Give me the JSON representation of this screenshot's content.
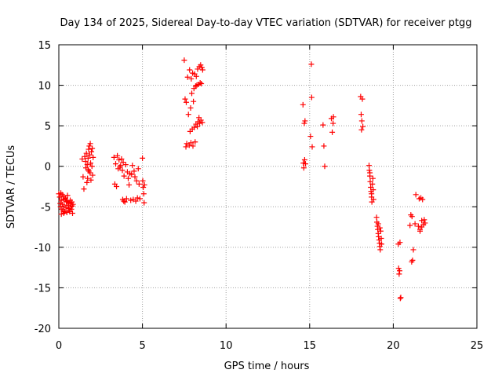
{
  "chart_data": {
    "type": "scatter",
    "title": "Day 134 of 2025, Sidereal Day-to-day VTEC variation (SDTVAR) for receiver ptgg",
    "xlabel": "GPS time / hours",
    "ylabel": "SDTVAR / TECUs",
    "xlim": [
      0,
      25
    ],
    "ylim": [
      -20,
      15
    ],
    "xticks": [
      0,
      5,
      10,
      15,
      20,
      25
    ],
    "xtick_labels": [
      "0",
      "5",
      "10",
      "15",
      "20",
      "25"
    ],
    "yticks": [
      -20,
      -15,
      -10,
      -5,
      0,
      5,
      10,
      15
    ],
    "ytick_labels": [
      "-20",
      "-15",
      "-10",
      "-5",
      "0",
      "5",
      "10",
      "15"
    ],
    "grid": true,
    "marker": "plus",
    "color": "#ff0000",
    "series": [
      {
        "name": "SDTVAR",
        "points": [
          [
            0.0,
            -3.4
          ],
          [
            0.05,
            -3.8
          ],
          [
            0.08,
            -4.6
          ],
          [
            0.1,
            -5.0
          ],
          [
            0.12,
            -3.3
          ],
          [
            0.15,
            -4.2
          ],
          [
            0.18,
            -5.3
          ],
          [
            0.2,
            -3.5
          ],
          [
            0.22,
            -4.7
          ],
          [
            0.25,
            -5.5
          ],
          [
            0.28,
            -3.7
          ],
          [
            0.3,
            -4.1
          ],
          [
            0.32,
            -4.9
          ],
          [
            0.35,
            -5.6
          ],
          [
            0.38,
            -4.0
          ],
          [
            0.4,
            -3.9
          ],
          [
            0.42,
            -5.1
          ],
          [
            0.45,
            -4.4
          ],
          [
            0.48,
            -5.7
          ],
          [
            0.5,
            -4.3
          ],
          [
            0.52,
            -3.6
          ],
          [
            0.55,
            -4.8
          ],
          [
            0.58,
            -5.2
          ],
          [
            0.6,
            -4.5
          ],
          [
            0.62,
            -5.4
          ],
          [
            0.65,
            -5.6
          ],
          [
            0.68,
            -4.2
          ],
          [
            0.7,
            -4.6
          ],
          [
            0.72,
            -5.0
          ],
          [
            0.75,
            -5.3
          ],
          [
            0.78,
            -4.4
          ],
          [
            0.8,
            -4.9
          ],
          [
            0.82,
            -5.8
          ],
          [
            0.85,
            -4.7
          ],
          [
            0.3,
            -5.8
          ],
          [
            0.15,
            -5.9
          ],
          [
            1.4,
            0.9
          ],
          [
            1.45,
            -1.3
          ],
          [
            1.5,
            -2.8
          ],
          [
            1.55,
            1.2
          ],
          [
            1.6,
            0.6
          ],
          [
            1.62,
            -0.2
          ],
          [
            1.65,
            1.6
          ],
          [
            1.7,
            0.2
          ],
          [
            1.72,
            -1.5
          ],
          [
            1.75,
            1.0
          ],
          [
            1.78,
            2.1
          ],
          [
            1.8,
            -0.6
          ],
          [
            1.82,
            2.5
          ],
          [
            1.85,
            1.4
          ],
          [
            1.87,
            -0.8
          ],
          [
            1.88,
            2.8
          ],
          [
            1.9,
            0.4
          ],
          [
            1.92,
            -1.7
          ],
          [
            1.95,
            1.8
          ],
          [
            1.98,
            0.0
          ],
          [
            2.0,
            2.2
          ],
          [
            2.02,
            -1.1
          ],
          [
            2.05,
            1.1
          ],
          [
            1.68,
            -2.0
          ],
          [
            1.75,
            -0.4
          ],
          [
            3.3,
            1.1
          ],
          [
            3.35,
            -2.2
          ],
          [
            3.4,
            0.3
          ],
          [
            3.45,
            -2.5
          ],
          [
            3.5,
            1.3
          ],
          [
            3.55,
            -0.3
          ],
          [
            3.6,
            0.8
          ],
          [
            3.65,
            -0.1
          ],
          [
            3.7,
            0.1
          ],
          [
            3.75,
            0.9
          ],
          [
            3.8,
            -0.5
          ],
          [
            3.82,
            -4.1
          ],
          [
            3.85,
            0.5
          ],
          [
            3.88,
            -4.3
          ],
          [
            3.9,
            -1.2
          ],
          [
            3.95,
            -4.4
          ],
          [
            4.0,
            0.2
          ],
          [
            4.05,
            -4.0
          ],
          [
            4.1,
            -0.7
          ],
          [
            4.15,
            -1.5
          ],
          [
            4.2,
            -2.3
          ],
          [
            4.25,
            -0.9
          ],
          [
            4.3,
            -4.2
          ],
          [
            4.35,
            -1.0
          ],
          [
            4.4,
            0.1
          ],
          [
            4.45,
            -4.1
          ],
          [
            4.5,
            -0.6
          ],
          [
            4.55,
            -1.3
          ],
          [
            4.6,
            -4.3
          ],
          [
            4.65,
            -1.8
          ],
          [
            4.7,
            -3.9
          ],
          [
            4.75,
            -0.3
          ],
          [
            4.8,
            -2.2
          ],
          [
            4.85,
            -4.0
          ],
          [
            5.0,
            1.0
          ],
          [
            5.02,
            -1.8
          ],
          [
            5.05,
            -2.6
          ],
          [
            5.08,
            -3.4
          ],
          [
            5.1,
            -4.5
          ],
          [
            5.12,
            -2.3
          ],
          [
            7.5,
            13.1
          ],
          [
            7.55,
            8.3
          ],
          [
            7.6,
            2.4
          ],
          [
            7.62,
            7.9
          ],
          [
            7.65,
            2.8
          ],
          [
            7.7,
            11.0
          ],
          [
            7.75,
            6.4
          ],
          [
            7.8,
            2.6
          ],
          [
            7.82,
            11.9
          ],
          [
            7.85,
            4.3
          ],
          [
            7.88,
            7.2
          ],
          [
            7.9,
            2.9
          ],
          [
            7.92,
            10.8
          ],
          [
            7.95,
            9.0
          ],
          [
            7.98,
            4.6
          ],
          [
            8.0,
            11.5
          ],
          [
            8.02,
            2.5
          ],
          [
            8.05,
            8.0
          ],
          [
            8.08,
            9.6
          ],
          [
            8.1,
            4.8
          ],
          [
            8.12,
            11.4
          ],
          [
            8.15,
            3.0
          ],
          [
            8.18,
            9.9
          ],
          [
            8.2,
            5.2
          ],
          [
            8.22,
            11.1
          ],
          [
            8.25,
            10.0
          ],
          [
            8.28,
            4.9
          ],
          [
            8.3,
            12.0
          ],
          [
            8.32,
            5.5
          ],
          [
            8.35,
            10.1
          ],
          [
            8.38,
            6.0
          ],
          [
            8.4,
            12.3
          ],
          [
            8.42,
            5.3
          ],
          [
            8.45,
            10.3
          ],
          [
            8.48,
            12.5
          ],
          [
            8.5,
            5.7
          ],
          [
            8.52,
            10.2
          ],
          [
            8.55,
            12.2
          ],
          [
            8.58,
            5.4
          ],
          [
            8.6,
            11.9
          ],
          [
            14.6,
            7.6
          ],
          [
            14.62,
            0.4
          ],
          [
            14.65,
            -0.2
          ],
          [
            14.68,
            5.3
          ],
          [
            14.7,
            0.8
          ],
          [
            14.72,
            5.6
          ],
          [
            14.75,
            0.3
          ],
          [
            15.05,
            3.7
          ],
          [
            15.1,
            12.6
          ],
          [
            15.12,
            8.5
          ],
          [
            15.15,
            2.4
          ],
          [
            15.8,
            5.1
          ],
          [
            15.85,
            2.5
          ],
          [
            15.9,
            0.0
          ],
          [
            16.3,
            5.9
          ],
          [
            16.35,
            4.2
          ],
          [
            16.4,
            5.3
          ],
          [
            16.42,
            6.1
          ],
          [
            18.05,
            8.6
          ],
          [
            18.08,
            6.4
          ],
          [
            18.1,
            4.5
          ],
          [
            18.12,
            5.6
          ],
          [
            18.15,
            8.3
          ],
          [
            18.18,
            4.9
          ],
          [
            18.55,
            0.1
          ],
          [
            18.57,
            -0.5
          ],
          [
            18.6,
            -1.2
          ],
          [
            18.62,
            -1.9
          ],
          [
            18.65,
            -2.6
          ],
          [
            18.67,
            -3.1
          ],
          [
            18.7,
            -3.8
          ],
          [
            18.72,
            -4.4
          ],
          [
            18.75,
            -2.2
          ],
          [
            18.78,
            -1.5
          ],
          [
            18.8,
            -2.9
          ],
          [
            18.82,
            -4.1
          ],
          [
            18.6,
            -0.8
          ],
          [
            18.7,
            -3.4
          ],
          [
            19.0,
            -6.3
          ],
          [
            19.02,
            -6.9
          ],
          [
            19.05,
            -7.4
          ],
          [
            19.07,
            -7.8
          ],
          [
            19.1,
            -8.3
          ],
          [
            19.12,
            -8.7
          ],
          [
            19.15,
            -9.1
          ],
          [
            19.18,
            -9.5
          ],
          [
            19.2,
            -9.9
          ],
          [
            19.22,
            -10.3
          ],
          [
            19.25,
            -8.0
          ],
          [
            19.28,
            -8.9
          ],
          [
            19.3,
            -9.6
          ],
          [
            19.1,
            -7.1
          ],
          [
            19.2,
            -7.6
          ],
          [
            20.3,
            -9.6
          ],
          [
            20.32,
            -12.6
          ],
          [
            20.35,
            -13.3
          ],
          [
            20.38,
            -12.9
          ],
          [
            20.4,
            -9.4
          ],
          [
            20.42,
            -16.3
          ],
          [
            20.45,
            -16.2
          ],
          [
            21.0,
            -7.3
          ],
          [
            21.05,
            -6.0
          ],
          [
            21.1,
            -11.8
          ],
          [
            21.12,
            -6.2
          ],
          [
            21.15,
            -11.6
          ],
          [
            21.2,
            -10.3
          ],
          [
            21.3,
            -7.1
          ],
          [
            21.35,
            -3.5
          ],
          [
            21.5,
            -7.4
          ],
          [
            21.55,
            -4.0
          ],
          [
            21.6,
            -8.0
          ],
          [
            21.65,
            -3.9
          ],
          [
            21.7,
            -6.7
          ],
          [
            21.75,
            -4.1
          ],
          [
            21.8,
            -7.2
          ],
          [
            21.85,
            -6.6
          ],
          [
            21.9,
            -7.0
          ],
          [
            21.6,
            -7.8
          ],
          [
            21.7,
            -7.5
          ]
        ]
      }
    ]
  }
}
